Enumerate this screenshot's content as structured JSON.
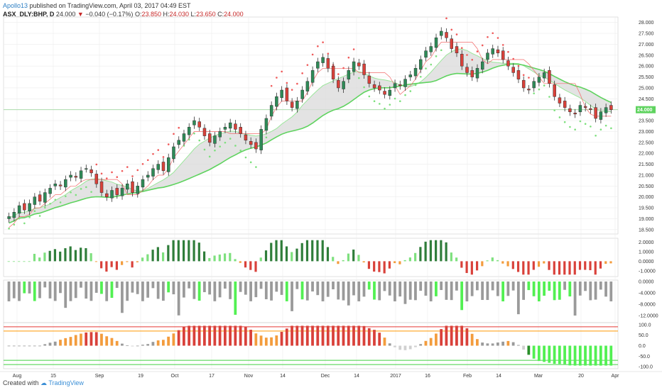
{
  "header": {
    "author": "Apollo13",
    "published_text": "published on TradingView.com, April 03, 2017 04:49 EST",
    "symbol": "ASX_DLY:BHP, D",
    "last": "24.000",
    "change_arrow": "▼",
    "change": "−0.040 (−0.17%)",
    "open_label": "O:",
    "open": "23.850",
    "high_label": "H:",
    "high": "24.030",
    "low_label": "L:",
    "low": "23.650",
    "close_label": "C:",
    "close": "24.000"
  },
  "footer": {
    "created_with": "Created with",
    "brand": "TradingView"
  },
  "colors": {
    "up": "#2e8b57",
    "down": "#d9413a",
    "bull": "#2e8b57",
    "bear": "#c0392b",
    "channel_fill": "#d9d9d9",
    "channel_line": "#5fd35f",
    "psar": "#f05a5a",
    "stop_line": "#f26b6b",
    "osc_up": "#2f7d3a",
    "osc_up_light": "#7ee07e",
    "osc_down": "#d9413a",
    "osc_orange": "#f39c3d",
    "bar_gray": "#9a9a9a",
    "bar_green": "#52f052",
    "bar_dark_green": "#2a8f2a",
    "level_red": "#e53935",
    "level_orange": "#ff9800",
    "level_green": "#43d143"
  },
  "chart_data": [
    {
      "type": "candlestick",
      "title": "ASX_DLY:BHP, D",
      "x_ticks": [
        "Aug",
        "15",
        "Sep",
        "19",
        "Oct",
        "17",
        "Nov",
        "14",
        "Dec",
        "14",
        "2017",
        "16",
        "Feb",
        "14",
        "Mar",
        "20",
        "Apr"
      ],
      "y_ticks": [
        18.5,
        19.0,
        19.5,
        20.0,
        20.5,
        21.0,
        21.5,
        22.0,
        22.5,
        23.0,
        23.5,
        24.0,
        24.5,
        25.0,
        25.5,
        26.0,
        26.5,
        27.0,
        27.5,
        28.0
      ],
      "ylim": [
        18.3,
        28.25
      ],
      "last_price_label": "24.000",
      "close_path": [
        19.1,
        19.3,
        19.6,
        19.4,
        19.7,
        20.0,
        19.8,
        20.2,
        20.4,
        20.6,
        20.5,
        20.8,
        21.0,
        20.9,
        21.2,
        21.3,
        21.1,
        20.6,
        20.2,
        20.0,
        20.3,
        20.1,
        20.4,
        20.6,
        20.2,
        20.5,
        20.8,
        21.0,
        21.3,
        21.5,
        21.2,
        21.8,
        22.3,
        22.6,
        22.9,
        23.2,
        23.5,
        23.2,
        22.8,
        22.5,
        22.8,
        23.0,
        23.2,
        23.4,
        23.1,
        22.9,
        22.6,
        22.4,
        22.2,
        23.1,
        23.6,
        24.2,
        24.6,
        24.9,
        24.4,
        24.1,
        24.4,
        24.9,
        25.3,
        25.8,
        26.2,
        26.4,
        25.9,
        25.4,
        25.0,
        25.3,
        25.8,
        26.2,
        26.0,
        25.6,
        25.2,
        25.0,
        24.9,
        24.7,
        24.9,
        25.2,
        25.1,
        25.4,
        25.6,
        25.9,
        26.3,
        26.7,
        26.9,
        27.3,
        27.6,
        27.3,
        26.8,
        26.6,
        26.0,
        25.7,
        25.5,
        25.9,
        26.2,
        26.6,
        26.8,
        26.6,
        26.3,
        26.0,
        25.7,
        25.4,
        25.0,
        24.9,
        25.3,
        25.5,
        25.7,
        25.2,
        24.6,
        24.3,
        24.1,
        23.9,
        23.8,
        24.2,
        24.1,
        24.0,
        23.6,
        23.9,
        24.1,
        24.0
      ]
    },
    {
      "type": "bar",
      "title": "",
      "y_ticks": [
        2.0,
        1.0,
        0.0,
        -1.0
      ],
      "ylim": [
        -1.6,
        2.4
      ],
      "segments": [
        "Green impulse peaks near Sep, Oct, Dec, Feb; red troughs near Sep 19, Nov, Mar"
      ]
    },
    {
      "type": "bar",
      "title": "",
      "y_ticks": [
        0.0,
        -4.0,
        -8.0,
        -12.0
      ],
      "ylim": [
        -14.5,
        0.5
      ]
    },
    {
      "type": "bar",
      "title": "",
      "y_ticks": [
        100.0,
        50.0,
        0.0,
        -50.0,
        -100.0
      ],
      "ylim": [
        -110,
        110
      ],
      "levels": [
        90,
        70,
        -70,
        -90
      ]
    }
  ]
}
